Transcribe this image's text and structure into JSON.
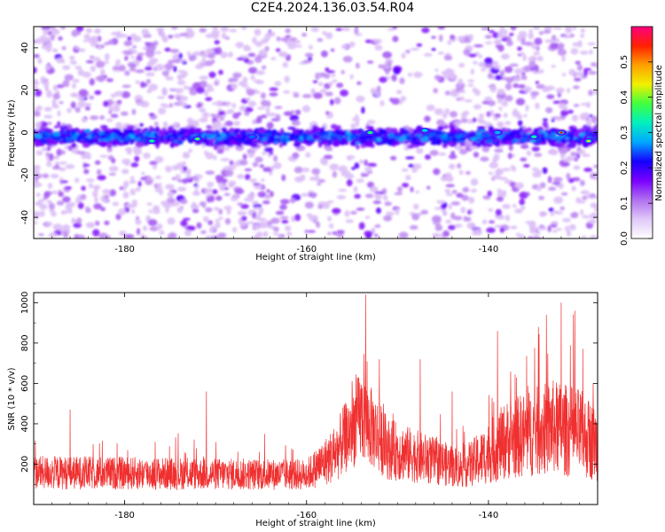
{
  "title": "C2E4.2024.136.03.54.R04",
  "chart_data": [
    {
      "type": "heatmap",
      "xlabel": "Height of straight line (km)",
      "ylabel": "Frequency (Hz)",
      "xlim": [
        -190,
        -128
      ],
      "ylim": [
        -50,
        50
      ],
      "xticks": [
        -180,
        -160,
        -140
      ],
      "xtick_labels": [
        "-180",
        "-160",
        "-140"
      ],
      "yticks": [
        -40,
        -20,
        0,
        20,
        40
      ],
      "ytick_labels": [
        "-40",
        "-20",
        "0",
        "20",
        "40"
      ],
      "colorbar": {
        "label": "Normalized spectral amplitude",
        "range": [
          0,
          0.6
        ],
        "ticks": [
          0.0,
          0.1,
          0.2,
          0.3,
          0.4,
          0.5
        ],
        "tick_labels": [
          "0.0",
          "0.1",
          "0.2",
          "0.3",
          "0.4",
          "0.5"
        ],
        "colors": [
          "#ffffff",
          "#e0c8f8",
          "#b070f0",
          "#7a00ff",
          "#1500ff",
          "#00a8ff",
          "#00f0c0",
          "#40ff40",
          "#f0f000",
          "#ffa000",
          "#ff2000",
          "#ff0080"
        ]
      },
      "band": {
        "center_hz": -2,
        "half_width_hz": 4
      },
      "hotspots": [
        {
          "x": -177,
          "y": -4,
          "v": 0.35
        },
        {
          "x": -172,
          "y": -3,
          "v": 0.4
        },
        {
          "x": -166,
          "y": -2,
          "v": 0.25
        },
        {
          "x": -153,
          "y": 0,
          "v": 0.38
        },
        {
          "x": -147,
          "y": 1,
          "v": 0.3
        },
        {
          "x": -139,
          "y": 0,
          "v": 0.28
        },
        {
          "x": -135,
          "y": -2,
          "v": 0.35
        },
        {
          "x": -132,
          "y": 0,
          "v": 0.55
        },
        {
          "x": -129,
          "y": -4,
          "v": 0.45
        }
      ]
    },
    {
      "type": "line",
      "xlabel": "Height of straight line (km)",
      "ylabel": "SNR (10 * v/v)",
      "xlim": [
        -190,
        -128
      ],
      "ylim": [
        0,
        1050
      ],
      "xticks": [
        -180,
        -160,
        -140
      ],
      "xtick_labels": [
        "-180",
        "-160",
        "-140"
      ],
      "yticks": [
        200,
        400,
        600,
        800,
        1000
      ],
      "ytick_labels": [
        "200",
        "400",
        "600",
        "800",
        "1000"
      ],
      "color": "#f03030",
      "profile": [
        {
          "x": -190,
          "base": 150,
          "spread": 120
        },
        {
          "x": -160,
          "base": 140,
          "spread": 110
        },
        {
          "x": -157,
          "base": 230,
          "spread": 200
        },
        {
          "x": -154,
          "base": 420,
          "spread": 330
        },
        {
          "x": -151,
          "base": 260,
          "spread": 220
        },
        {
          "x": -143,
          "base": 170,
          "spread": 140
        },
        {
          "x": -141,
          "base": 210,
          "spread": 190
        },
        {
          "x": -138,
          "base": 300,
          "spread": 280
        },
        {
          "x": -133,
          "base": 360,
          "spread": 340
        },
        {
          "x": -130,
          "base": 330,
          "spread": 320
        },
        {
          "x": -128,
          "base": 280,
          "spread": 260
        }
      ],
      "peaks": [
        {
          "x": -186,
          "y": 470
        },
        {
          "x": -171,
          "y": 560
        },
        {
          "x": -156,
          "y": 480
        },
        {
          "x": -153.5,
          "y": 1040
        },
        {
          "x": -152,
          "y": 720
        },
        {
          "x": -147.5,
          "y": 720
        },
        {
          "x": -144,
          "y": 560
        },
        {
          "x": -139,
          "y": 860
        },
        {
          "x": -134.5,
          "y": 880
        },
        {
          "x": -132,
          "y": 1000
        },
        {
          "x": -130.5,
          "y": 960
        },
        {
          "x": -128.5,
          "y": 600
        }
      ]
    }
  ]
}
